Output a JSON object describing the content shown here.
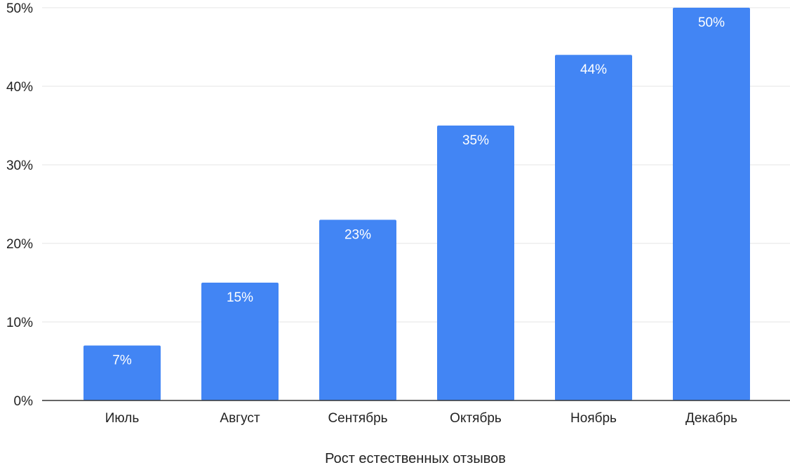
{
  "chart_data": {
    "type": "bar",
    "title": "",
    "xlabel": "Рост естественных отзывов",
    "ylabel": "",
    "categories": [
      "Июль",
      "Август",
      "Сентябрь",
      "Октябрь",
      "Ноябрь",
      "Декабрь"
    ],
    "values": [
      7,
      15,
      23,
      35,
      44,
      50
    ],
    "value_labels": [
      "7%",
      "15%",
      "23%",
      "35%",
      "44%",
      "50%"
    ],
    "ylim": [
      0,
      50
    ],
    "yticks": [
      0,
      10,
      20,
      30,
      40,
      50
    ],
    "ytick_labels": [
      "0%",
      "10%",
      "20%",
      "30%",
      "40%",
      "50%"
    ],
    "grid": true,
    "legend": "none",
    "bar_color": "#4285F4",
    "grid_color": "#E6E6E6",
    "axis_color": "#333333"
  }
}
